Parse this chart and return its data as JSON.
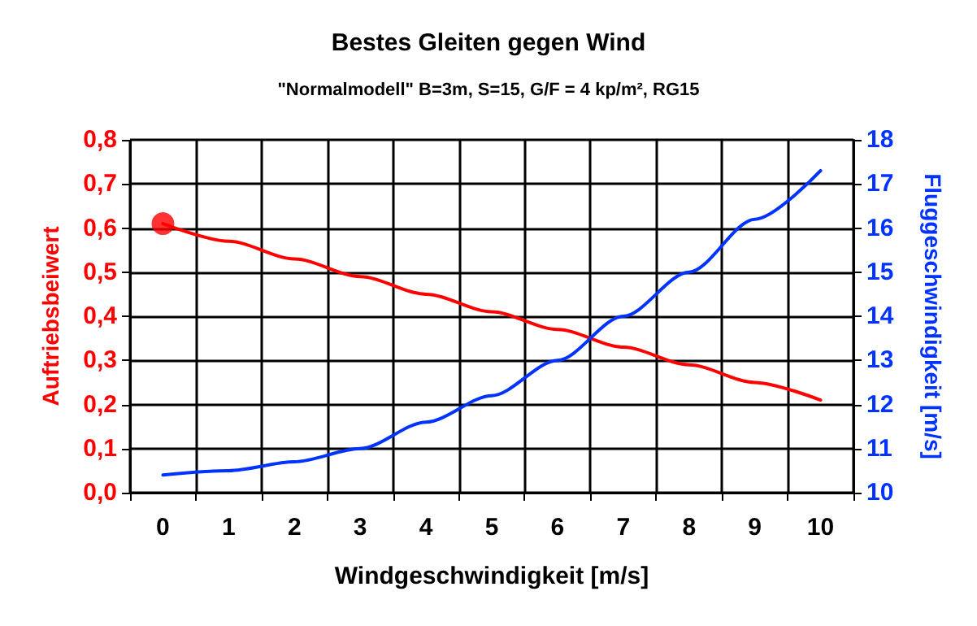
{
  "chart_data": {
    "type": "line",
    "title": "Bestes Gleiten gegen Wind",
    "subtitle": "\"Normalmodell\" B=3m, S=15, G/F = 4 kp/m², RG15",
    "xlabel": "Windgeschwindigkeit [m/s]",
    "ylabel": "Auftriebsbeiwert",
    "y2label": "Fluggeschwindigkeit [m/s]",
    "categories": [
      "0",
      "1",
      "2",
      "3",
      "4",
      "5",
      "6",
      "7",
      "8",
      "9",
      "10"
    ],
    "series": [
      {
        "color": "#ff0000",
        "values": [
          0.61,
          0.57,
          0.53,
          0.49,
          0.45,
          0.41,
          0.37,
          0.33,
          0.29,
          0.25,
          0.21
        ]
      },
      {
        "color": "#0033ff",
        "axis": "y2",
        "values": [
          10.4,
          10.5,
          10.7,
          11.0,
          11.6,
          12.2,
          13.0,
          14.0,
          15.0,
          16.2,
          17.3
        ]
      },
      {
        "type": "scatter",
        "color": "#ff0000",
        "x": [
          "0"
        ],
        "values": [
          0.61
        ],
        "marker": "circle"
      }
    ],
    "ylim": [
      0,
      0.8
    ],
    "yticks": [
      {
        "value": 0,
        "label": "0,0"
      },
      {
        "value": 0.1,
        "label": "0,1"
      },
      {
        "value": 0.2,
        "label": "0,2"
      },
      {
        "value": 0.3,
        "label": "0,3"
      },
      {
        "value": 0.4,
        "label": "0,4"
      },
      {
        "value": 0.5,
        "label": "0,5"
      },
      {
        "value": 0.6,
        "label": "0,6"
      },
      {
        "value": 0.7,
        "label": "0,7"
      },
      {
        "value": 0.8,
        "label": "0,8"
      }
    ],
    "y2lim": [
      10,
      18
    ],
    "y2ticks": [
      10,
      11,
      12,
      13,
      14,
      15,
      16,
      17,
      18
    ],
    "grid": true,
    "marker": "none",
    "line_style": "solid"
  }
}
